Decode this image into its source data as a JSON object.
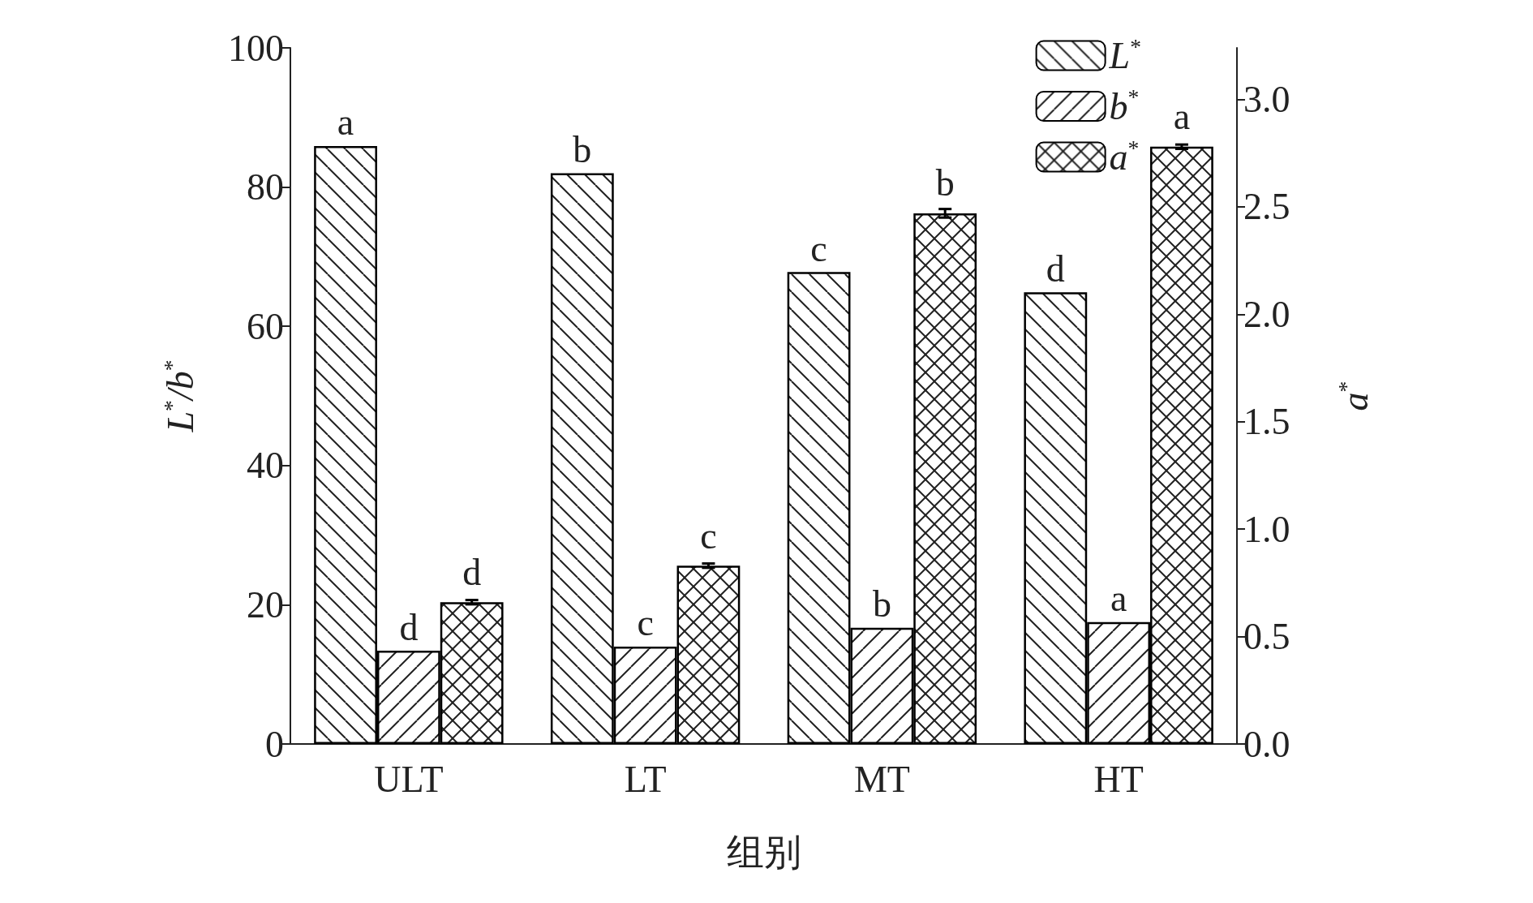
{
  "chart_data": {
    "type": "bar",
    "xlabel": "组别",
    "ylabel": "L$^{*}$/b$^{*}$",
    "y2label": "a$^{*}$",
    "categories": [
      "ULT",
      "LT",
      "MT",
      "HT"
    ],
    "series": [
      {
        "name": "L$^{*}$",
        "color": "#000000",
        "values": [
          85.9,
          82.0,
          67.8,
          64.9
        ],
        "value_labels": [
          "a",
          "b",
          "c",
          "d"
        ]
      },
      {
        "name": "b$^{*}$",
        "color": "#000000",
        "values": [
          13.4,
          14.0,
          16.7,
          17.5
        ],
        "value_labels": [
          "d",
          "c",
          "b",
          "a"
        ]
      },
      {
        "name": "a$^{*}$",
        "color": "#000000",
        "axis": "y2",
        "values": [
          0.66,
          0.83,
          2.47,
          2.78
        ],
        "errors": [
          0.01,
          0.01,
          0.02,
          0.01
        ],
        "value_labels": [
          "d",
          "c",
          "b",
          "a"
        ]
      }
    ],
    "ylim": [
      0,
      100
    ],
    "yticks": [
      0,
      20,
      40,
      60,
      80,
      100
    ],
    "y2lim": [
      0,
      3.24
    ],
    "y2ticks": [
      {
        "value": 0,
        "label": "0.0"
      },
      {
        "value": 0.5,
        "label": "0.5"
      },
      {
        "value": 1,
        "label": "1.0"
      },
      {
        "value": 1.5,
        "label": "1.5"
      },
      {
        "value": 2,
        "label": "2.0"
      },
      {
        "value": 2.5,
        "label": "2.5"
      },
      {
        "value": 3,
        "label": "3.0"
      }
    ],
    "grid": false,
    "legend": "top right"
  }
}
